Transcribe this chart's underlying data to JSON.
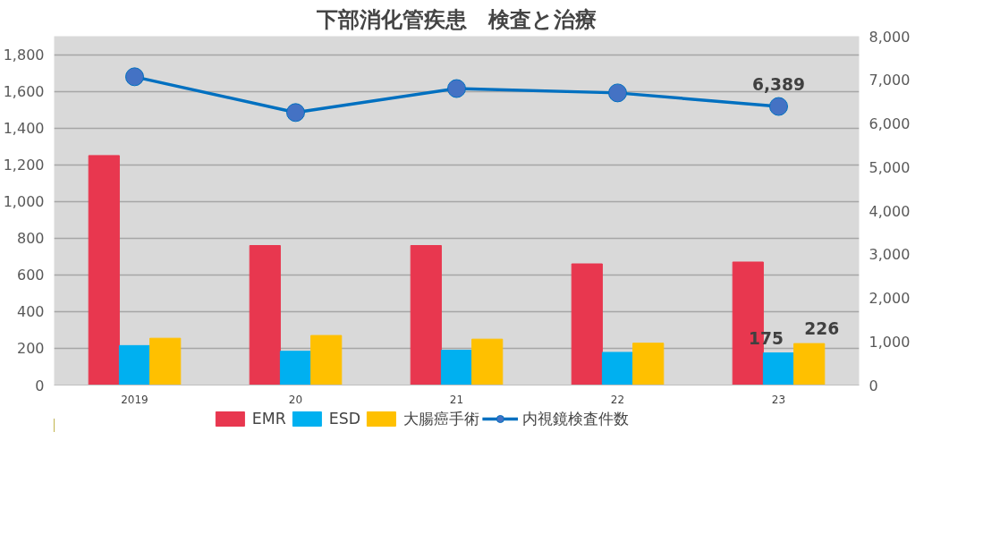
{
  "chart_data": {
    "type": "bar",
    "title": "下部消化管疾患　検査と治療",
    "categories": [
      "2019",
      "20",
      "21",
      "22",
      "23"
    ],
    "ylim": [
      0,
      1900
    ],
    "yticks": [
      0,
      200,
      400,
      600,
      800,
      {
        "value": 1000,
        "label": "1,000"
      },
      {
        "value": 1200,
        "label": "1,200"
      },
      {
        "value": 1400,
        "label": "1,400"
      },
      {
        "value": 1600,
        "label": "1,600"
      },
      {
        "value": 1800,
        "label": "1,800"
      }
    ],
    "y2lim": [
      0,
      8000
    ],
    "y2ticks": [
      0,
      {
        "value": 1000,
        "label": "1,000"
      },
      {
        "value": 2000,
        "label": "2,000"
      },
      {
        "value": 3000,
        "label": "3,000"
      },
      {
        "value": 4000,
        "label": "4,000"
      },
      {
        "value": 5000,
        "label": "5,000"
      },
      {
        "value": 6000,
        "label": "6,000"
      },
      {
        "value": 7000,
        "label": "7,000"
      },
      {
        "value": 8000,
        "label": "8,000"
      }
    ],
    "grid": "y",
    "legend": "bottom",
    "series": [
      {
        "name": "EMR",
        "color": "#e8374f",
        "values": [
          1250,
          760,
          760,
          660,
          670
        ]
      },
      {
        "name": "ESD",
        "color": "#00b0f0",
        "values": [
          215,
          184,
          190,
          178,
          175
        ],
        "value_labels": [
          null,
          null,
          null,
          null,
          "175"
        ]
      },
      {
        "name": "大腸癌手術",
        "color": "#ffc000",
        "values": [
          255,
          270,
          250,
          228,
          226
        ],
        "value_labels": [
          null,
          null,
          null,
          null,
          "226"
        ]
      },
      {
        "name": "内視鏡検査件数",
        "type": "line",
        "axis": "y2",
        "color": "#0070c0",
        "marker": "circle",
        "values": [
          7070,
          6250,
          6800,
          6700,
          6389
        ],
        "value_labels": [
          null,
          null,
          null,
          null,
          "6,389"
        ]
      }
    ]
  }
}
